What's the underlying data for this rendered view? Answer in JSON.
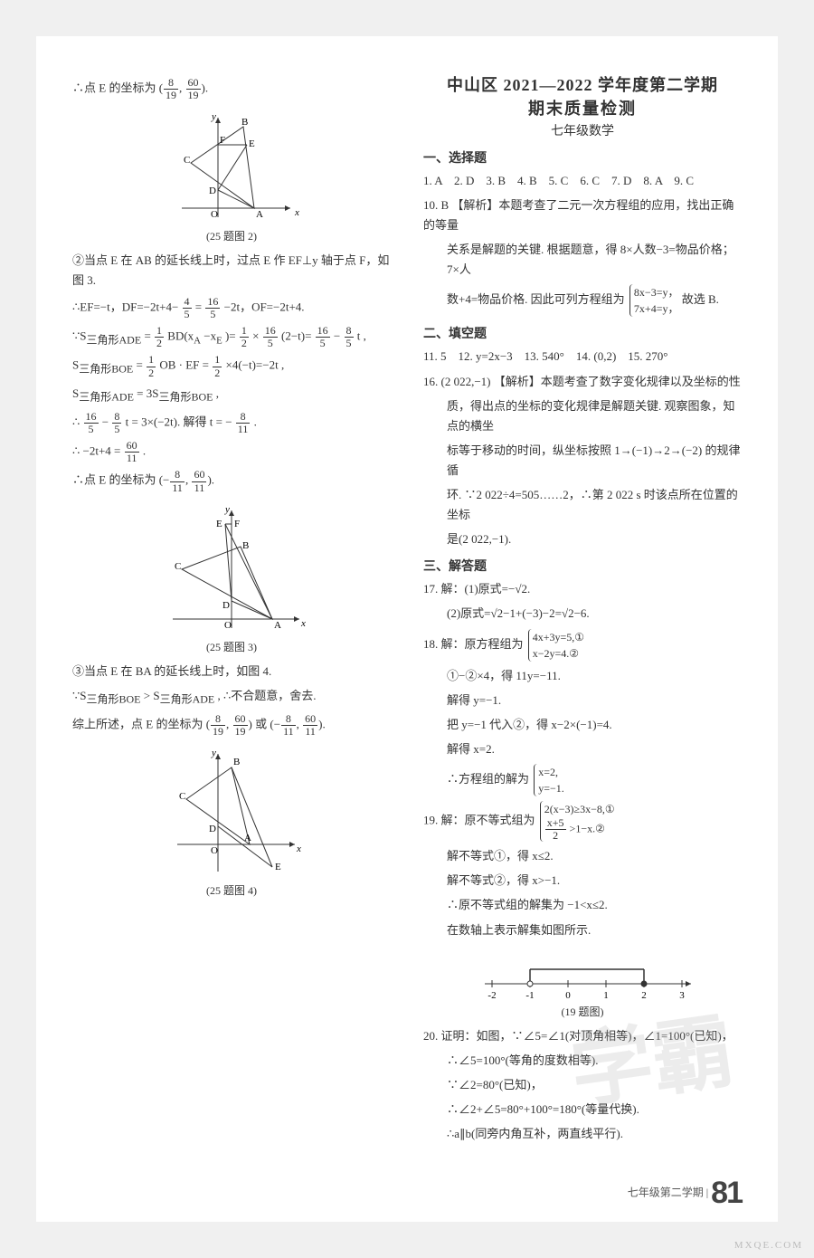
{
  "left": {
    "l1_pre": "∴点 E 的坐标为",
    "l1_frac1_n": "8",
    "l1_frac1_d": "19",
    "l1_frac2_n": "60",
    "l1_frac2_d": "19",
    "fig2_caption": "(25 题图 2)",
    "l2": "②当点 E 在 AB 的延长线上时，过点 E 作 EF⊥y 轴于点 F，如图 3.",
    "l3_a": "∴EF=−t，DF=−2t+4−",
    "l3_f1n": "4",
    "l3_f1d": "5",
    "l3_b": "=",
    "l3_f2n": "16",
    "l3_f2d": "5",
    "l3_c": "−2t，OF=−2t+4.",
    "l4_a": "∵S",
    "l4_sub1": "三角形ADE",
    "l4_b": " = ",
    "l4_f1n": "1",
    "l4_f1d": "2",
    "l4_c": "BD(x",
    "l4_sub2": "A",
    "l4_d": "−x",
    "l4_sub3": "E",
    "l4_e": ")= ",
    "l4_f2n": "1",
    "l4_f2d": "2",
    "l4_f": "×",
    "l4_f3n": "16",
    "l4_f3d": "5",
    "l4_g": "(2−t)=",
    "l4_f4n": "16",
    "l4_f4d": "5",
    "l4_h": "−",
    "l4_f5n": "8",
    "l4_f5d": "5",
    "l4_i": "t ,",
    "l5_a": "S",
    "l5_sub1": "三角形BOE",
    "l5_b": " = ",
    "l5_f1n": "1",
    "l5_f1d": "2",
    "l5_c": "OB · EF = ",
    "l5_f2n": "1",
    "l5_f2d": "2",
    "l5_d": "×4(−t)=−2t ,",
    "l6_a": "S",
    "l6_sub1": "三角形ADE",
    "l6_b": " = 3S",
    "l6_sub2": "三角形BOE",
    "l6_c": " ,",
    "l7_a": "∴",
    "l7_f1n": "16",
    "l7_f1d": "5",
    "l7_b": "−",
    "l7_f2n": "8",
    "l7_f2d": "5",
    "l7_c": "t = 3×(−2t). 解得 t = −",
    "l7_f3n": "8",
    "l7_f3d": "11",
    "l7_d": ".",
    "l8_a": "∴ −2t+4 = ",
    "l8_f1n": "60",
    "l8_f1d": "11",
    "l8_b": ".",
    "l9_a": "∴点 E 的坐标为",
    "l9_f1n": "8",
    "l9_f1d": "11",
    "l9_f2n": "60",
    "l9_f2d": "11",
    "fig3_caption": "(25 题图 3)",
    "l10": "③当点 E 在 BA 的延长线上时，如图 4.",
    "l11_a": "∵S",
    "l11_sub1": "三角形BOE",
    "l11_b": " > S",
    "l11_sub2": "三角形ADE",
    "l11_c": " , ∴不合题意，舍去.",
    "l12_a": "综上所述，点 E 的坐标为",
    "l12_f1n": "8",
    "l12_f1d": "19",
    "l12_f2n": "60",
    "l12_f2d": "19",
    "l12_b": "或",
    "l12_f3n": "8",
    "l12_f3d": "11",
    "l12_f4n": "60",
    "l12_f4d": "11",
    "fig4_caption": "(25 题图 4)",
    "graph": {
      "stroke": "#333",
      "label_font": 11
    }
  },
  "right": {
    "title1": "中山区 2021—2022 学年度第二学期",
    "title2": "期末质量检测",
    "title3": "七年级数学",
    "sec1": "一、选择题",
    "ans_line": "1. A　2. D　3. B　4. B　5. C　6. C　7. D　8. A　9. C",
    "q10a": "10. B 【解析】本题考查了二元一次方程组的应用，找出正确的等量",
    "q10b": "关系是解题的关键. 根据题意，得 8×人数−3=物品价格；7×人",
    "q10c_a": "数+4=物品价格. 因此可列方程组为",
    "q10_br1": "8x−3=y，",
    "q10_br2": "7x+4=y，",
    "q10c_b": "故选 B.",
    "sec2": "二、填空题",
    "fill_line": "11. 5　12. y=2x−3　13. 540°　14. (0,2)　15. 270°",
    "q16a": "16. (2 022,−1) 【解析】本题考查了数字变化规律以及坐标的性",
    "q16b": "质，得出点的坐标的变化规律是解题关键. 观察图象，知点的横坐",
    "q16c": "标等于移动的时间，纵坐标按照 1→(−1)→2→(−2) 的规律循",
    "q16d": "环. ∵2 022÷4=505……2，∴第 2 022 s 时该点所在位置的坐标",
    "q16e": "是(2 022,−1).",
    "sec3": "三、解答题",
    "q17a": "17. 解：(1)原式=−√2.",
    "q17b": "(2)原式=√2−1+(−3)−2=√2−6.",
    "q18a": "18. 解：原方程组为",
    "q18_br1": "4x+3y=5,①",
    "q18_br2": "x−2y=4.②",
    "q18b": "①−②×4，得 11y=−11.",
    "q18c": "解得 y=−1.",
    "q18d": "把 y=−1 代入②，得 x−2×(−1)=4.",
    "q18e": "解得 x=2.",
    "q18f": "∴方程组的解为",
    "q18_br3": "x=2,",
    "q18_br4": "y=−1.",
    "q19a": "19. 解：原不等式组为",
    "q19_br1": "2(x−3)≥3x−8,①",
    "q19_br2a_n": "x+5",
    "q19_br2a_d": "2",
    "q19_br2b": ">1−x.②",
    "q19b": "解不等式①，得 x≤2.",
    "q19c": "解不等式②，得 x>−1.",
    "q19d": "∴原不等式组的解集为 −1<x≤2.",
    "q19e": "在数轴上表示解集如图所示.",
    "fig19_caption": "(19 题图)",
    "q20a": "20. 证明：如图，∵∠5=∠1(对顶角相等)，∠1=100°(已知)，",
    "q20b": "∴∠5=100°(等角的度数相等).",
    "q20c": "∵∠2=80°(已知)，",
    "q20d": "∴∠2+∠5=80°+100°=180°(等量代换).",
    "q20e": "∴a∥b(同旁内角互补，两直线平行).",
    "numberline": {
      "ticks": [
        "-2",
        "-1",
        "0",
        "1",
        "2",
        "3"
      ],
      "open": -1,
      "closed": 2
    }
  },
  "footer": {
    "label": "七年级第二学期 |",
    "page": "81"
  },
  "watermark": "学霸"
}
